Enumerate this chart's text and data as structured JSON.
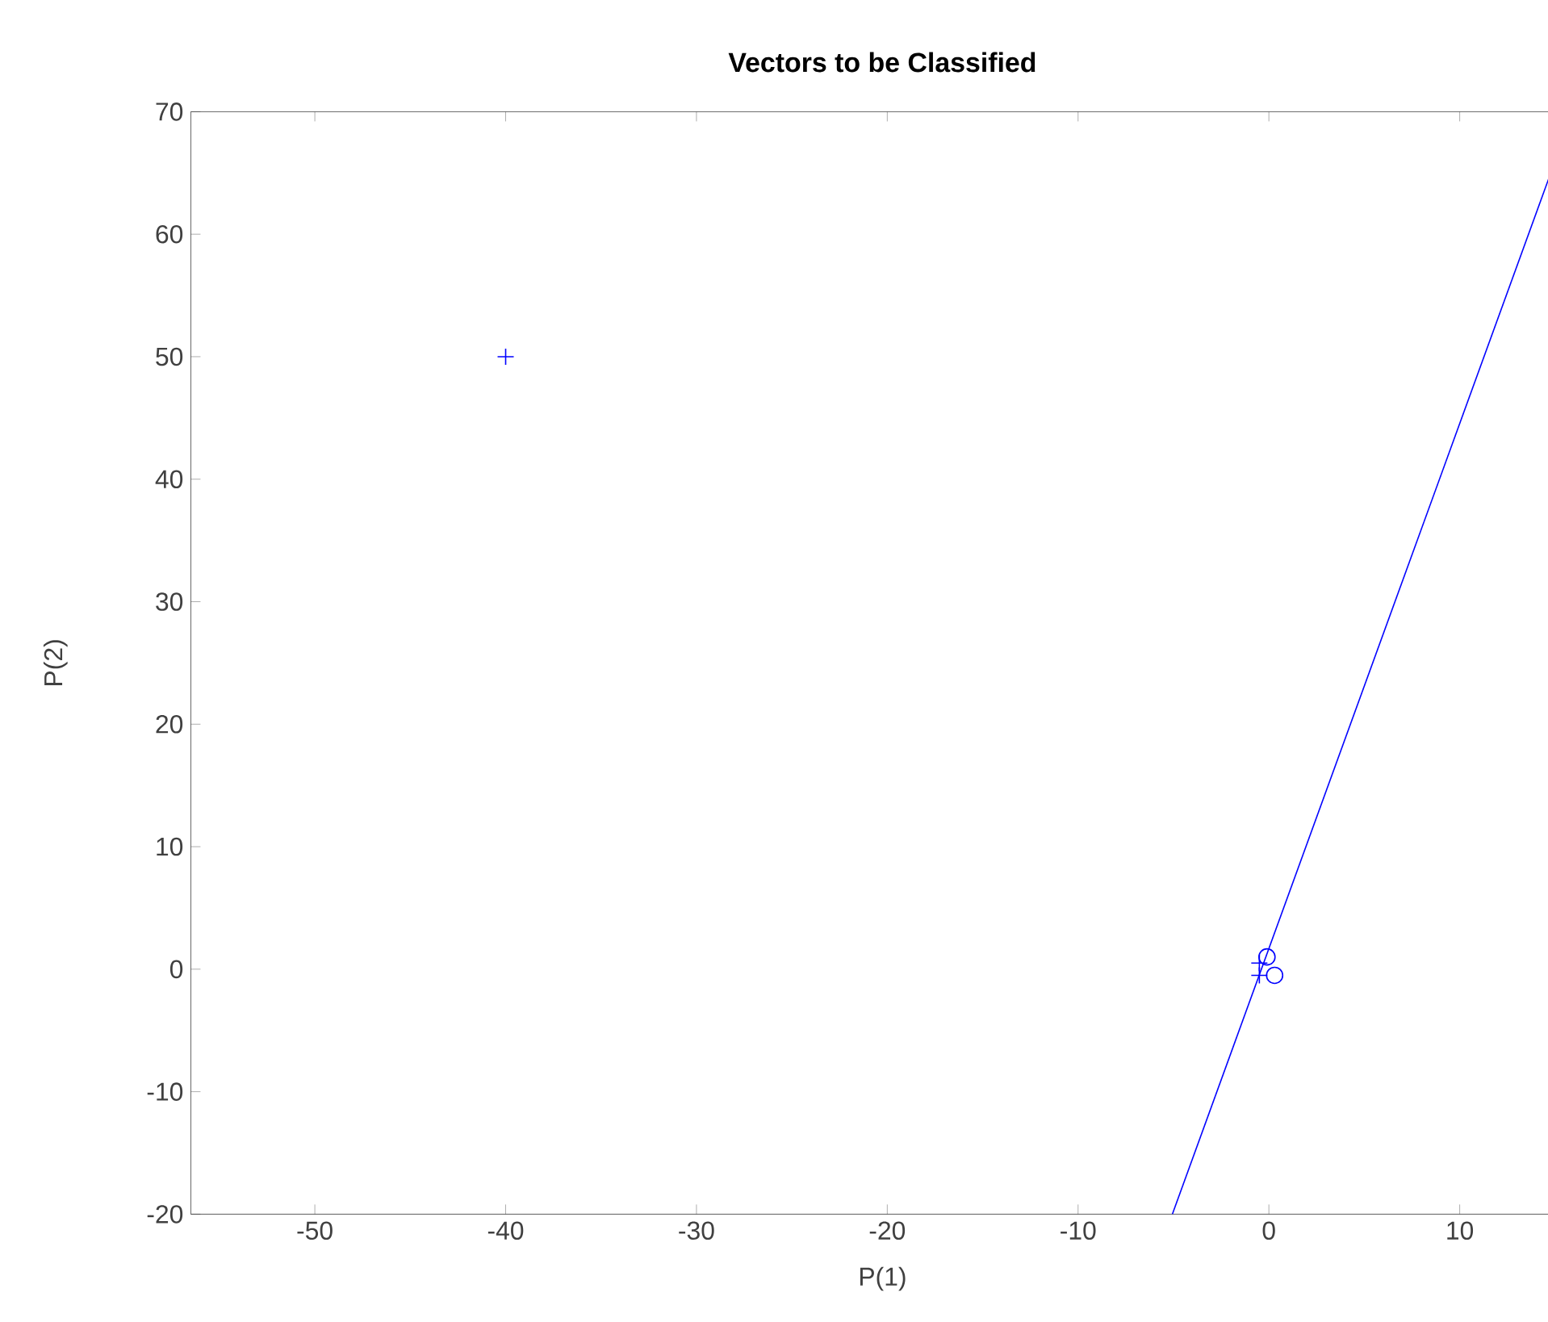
{
  "chart_data": {
    "type": "scatter",
    "title": "**Vectors to be Classified**",
    "xlabel": "P(1)",
    "ylabel": "P(2)",
    "xlim": [
      -56.5,
      16
    ],
    "ylim": [
      -20,
      70
    ],
    "xticks": [
      -50,
      -40,
      -30,
      -20,
      -10,
      0,
      10
    ],
    "yticks": [
      -20,
      -10,
      0,
      10,
      20,
      30,
      40,
      50,
      60,
      70
    ],
    "grid": false,
    "series": [
      {
        "marker": "cross",
        "color": "#0000ff",
        "x": [
          -0.5,
          -0.5,
          -40
        ],
        "values": [
          -0.5,
          0.5,
          50
        ]
      },
      {
        "marker": "circle",
        "color": "#0000ff",
        "x": [
          0.3,
          -0.1
        ],
        "values": [
          -0.5,
          1.0
        ]
      },
      {
        "type": "line",
        "marker": "none",
        "color": "#0000ff",
        "x": [
          -5.06,
          15.94
        ],
        "values": [
          -20,
          70
        ]
      }
    ]
  }
}
